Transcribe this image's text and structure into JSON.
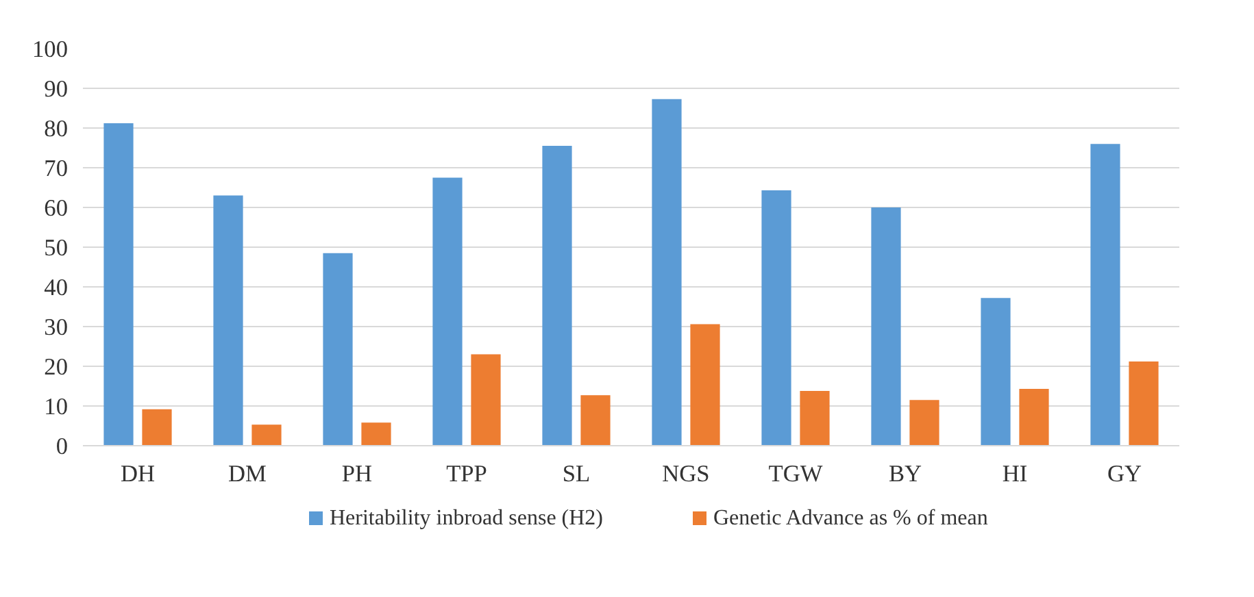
{
  "chart_data": {
    "type": "bar",
    "categories": [
      "DH",
      "DM",
      "PH",
      "TPP",
      "SL",
      "NGS",
      "TGW",
      "BY",
      "HI",
      "GY"
    ],
    "series": [
      {
        "name": "Heritability inbroad sense (H2)",
        "color": "#5b9bd5",
        "values": [
          81.2,
          63,
          48.5,
          67.5,
          75.5,
          87.3,
          64.3,
          60,
          37.2,
          76
        ]
      },
      {
        "name": "Genetic Advance as % of mean",
        "color": "#ed7d31",
        "values": [
          9.2,
          5.3,
          5.8,
          23,
          12.7,
          30.6,
          13.8,
          11.5,
          14.3,
          21.2
        ]
      }
    ],
    "ylim": [
      0,
      100
    ],
    "yticks": [
      0,
      10,
      20,
      30,
      40,
      50,
      60,
      70,
      80,
      90,
      100
    ],
    "grid": "y",
    "legend": "bottom"
  }
}
